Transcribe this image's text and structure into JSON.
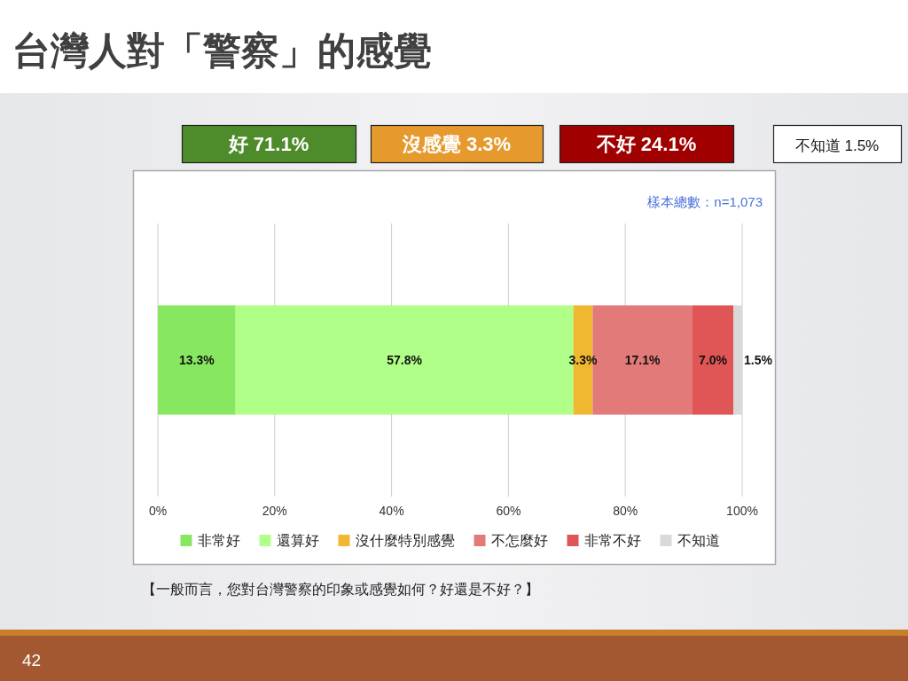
{
  "chart_data": {
    "type": "bar",
    "orientation": "horizontal",
    "stacked": true,
    "title": "台灣人對「警察」的感覺",
    "categories": [
      null
    ],
    "series": [
      {
        "name": "非常好",
        "color": "#88e760",
        "values": [
          13.3
        ],
        "value_labels": [
          "13.3%"
        ]
      },
      {
        "name": "還算好",
        "color": "#b0ff88",
        "values": [
          57.8
        ],
        "value_labels": [
          "57.8%"
        ]
      },
      {
        "name": "沒什麼特別感覺",
        "color": "#f0b830",
        "values": [
          3.3
        ],
        "value_labels": [
          "3.3%"
        ]
      },
      {
        "name": "不怎麼好",
        "color": "#e27a7a",
        "values": [
          17.1
        ],
        "value_labels": [
          "17.1%"
        ]
      },
      {
        "name": "非常不好",
        "color": "#e05555",
        "values": [
          7.0
        ],
        "value_labels": [
          "7.0%"
        ]
      },
      {
        "name": "不知道",
        "color": "#d9d9d9",
        "values": [
          1.5
        ],
        "value_labels": [
          "1.5%"
        ]
      }
    ],
    "xlim": [
      0,
      100
    ],
    "xticks": [
      {
        "value": 0,
        "label": "0%"
      },
      {
        "value": 20,
        "label": "20%"
      },
      {
        "value": 40,
        "label": "40%"
      },
      {
        "value": 60,
        "label": "60%"
      },
      {
        "value": 80,
        "label": "80%"
      },
      {
        "value": 100,
        "label": "100%"
      }
    ],
    "grid": "x",
    "legend": "bottom",
    "annotations": [
      "好 71.1%",
      "沒感覺 3.3%",
      "不好 24.1%",
      "不知道 1.5%",
      "樣本總數：n=1,073",
      "【一般而言，您對台灣警察的印象或感覺如何？好還是不好？】",
      "42"
    ]
  }
}
